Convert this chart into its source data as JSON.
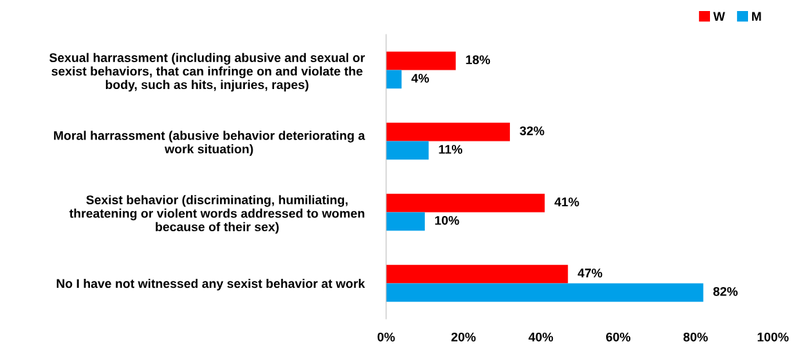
{
  "chart_data": {
    "type": "bar",
    "orientation": "horizontal",
    "categories": [
      "Sexual harrassment (including abusive and sexual or\nsexist behaviors, that can infringe on and violate the\nbody, such as hits, injuries, rapes)",
      "Moral harrassment (abusive behavior deteriorating a\nwork situation)",
      "Sexist behavior (discriminating, humiliating,\nthreatening or violent words addressed to women\nbecause of their sex)",
      "No I have not witnessed any sexist behavior at work"
    ],
    "series": [
      {
        "name": "W",
        "color": "#ff0000",
        "values": [
          18,
          32,
          41,
          47
        ],
        "value_labels": [
          "18%",
          "32%",
          "41%",
          "47%"
        ]
      },
      {
        "name": "M",
        "color": "#00a0e9",
        "values": [
          4,
          11,
          10,
          82
        ],
        "value_labels": [
          "4%",
          "11%",
          "10%",
          "82%"
        ]
      }
    ],
    "xlim": [
      0,
      100
    ],
    "xticks": [
      {
        "value": 0,
        "label": "0%"
      },
      {
        "value": 20,
        "label": "20%"
      },
      {
        "value": 40,
        "label": "40%"
      },
      {
        "value": 60,
        "label": "60%"
      },
      {
        "value": 80,
        "label": "80%"
      },
      {
        "value": 100,
        "label": "100%"
      }
    ],
    "grid": false,
    "legend": "top right"
  }
}
